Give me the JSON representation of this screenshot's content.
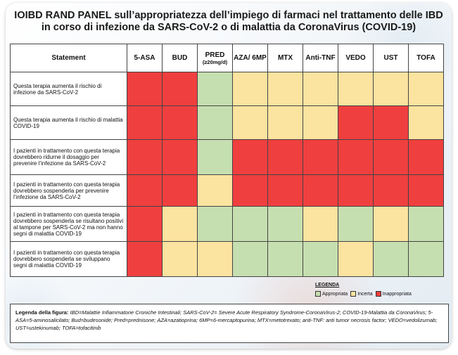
{
  "title": {
    "line1": "IOIBD RAND PANEL sull’appropriatezza dell’impiego di farmaci nel trattamento delle IBD",
    "line2": "in corso di infezione da SARS-CoV-2 o di malattia da CoronaVirus (COVID-19)"
  },
  "table": {
    "header_statement": "Statement",
    "columns": [
      {
        "label": "5-ASA",
        "sub": ""
      },
      {
        "label": "BUD",
        "sub": ""
      },
      {
        "label": "PRED",
        "sub": "(≥20mg/d)"
      },
      {
        "label": "AZA/ 6MP",
        "sub": ""
      },
      {
        "label": "MTX",
        "sub": ""
      },
      {
        "label": "Anti-TNF",
        "sub": ""
      },
      {
        "label": "VEDO",
        "sub": ""
      },
      {
        "label": "UST",
        "sub": ""
      },
      {
        "label": "TOFA",
        "sub": ""
      }
    ],
    "rows": [
      {
        "statement": "Questa terapia aumenta il rischio di infezione da SARS-CoV-2",
        "ratings": [
          "Inappropriata",
          "Inappropriata",
          "Appropriata",
          "Incerta",
          "Incerta",
          "Incerta",
          "Incerta",
          "Incerta",
          "Incerta"
        ]
      },
      {
        "statement": "Questa terapia aumenta il rischio di malattia COVID-19",
        "ratings": [
          "Inappropriata",
          "Inappropriata",
          "Appropriata",
          "Incerta",
          "Incerta",
          "Incerta",
          "Inappropriata",
          "Inappropriata",
          "Incerta"
        ]
      },
      {
        "statement": "I pazienti in trattamento con questa terapia dovrebbero ridurne il dosaggio per prevenire l’infezione da SARS-CoV-2",
        "ratings": [
          "Inappropriata",
          "Inappropriata",
          "Appropriata",
          "Inappropriata",
          "Inappropriata",
          "Inappropriata",
          "Inappropriata",
          "Inappropriata",
          "Inappropriata"
        ]
      },
      {
        "statement": "I pazienti in trattamento con questa terapia dovrebbero sospenderla per prevenire l’infezione da SARS-CoV-2",
        "ratings": [
          "Inappropriata",
          "Inappropriata",
          "Incerta",
          "Inappropriata",
          "Inappropriata",
          "Inappropriata",
          "Inappropriata",
          "Inappropriata",
          "Inappropriata"
        ]
      },
      {
        "statement": "I pazienti in trattamento con questa terapia dovrebbero sospenderla se risultano positivi al tampone per SARS-CoV-2 ma non hanno segni di malattia COVID-19",
        "ratings": [
          "Inappropriata",
          "Incerta",
          "Appropriata",
          "Appropriata",
          "Appropriata",
          "Incerta",
          "Appropriata",
          "Incerta",
          "Appropriata"
        ]
      },
      {
        "statement": "I pazienti in trattamento con questa terapia dovrebbero sospenderla se sviluppano segni di malattia COVID-19",
        "ratings": [
          "Inappropriata",
          "Incerta",
          "Incerta",
          "Appropriata",
          "Appropriata",
          "Appropriata",
          "Incerta",
          "Appropriata",
          "Appropriata"
        ]
      }
    ]
  },
  "legend": {
    "title": "LEGENDA",
    "items": [
      {
        "label": "Appropriata",
        "color": "#c6dfb0"
      },
      {
        "label": "Incerta",
        "color": "#fbe3a0"
      },
      {
        "label": "Inappropriata",
        "color": "#ef3f3f"
      }
    ]
  },
  "footnote": {
    "lead": "Legenda della figura:",
    "text": "IBD=Malattie Infiammatorie Croniche Intestinali; SARS-CoV-2= Severe Acute Respiratory Syndrome-CoronaVirus-2; COVID-19-Malattia da CoronaVirus; 5-ASA=5-aminosalicilato; Bud=budesonide; Pred=prednisone; AZA=azatioprina; 6MP=6-mercaptopurina; MTX=metotrexato; anti-TNF: anti tumor necrosis factor; VEDO=vedolizumab; UST=ustekinumab; TOFA=tofacitinib"
  }
}
